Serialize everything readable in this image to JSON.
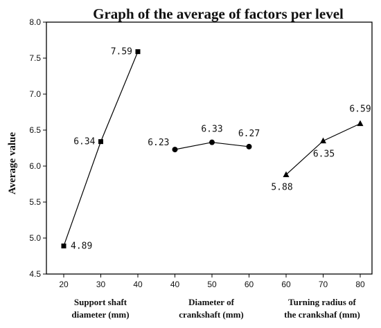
{
  "chart_data": {
    "type": "line",
    "title": "Graph of the average of factors per level",
    "ylabel": "Average value",
    "ylim": [
      4.5,
      8.0
    ],
    "yticks": [
      "4.5",
      "5.0",
      "5.5",
      "6.0",
      "6.5",
      "7.0",
      "7.5",
      "8.0"
    ],
    "grid": false,
    "groups": [
      {
        "label_lines": [
          "Support shaft",
          "diameter (mm)"
        ],
        "marker": "square",
        "x": [
          "20",
          "30",
          "40"
        ],
        "values": [
          4.89,
          6.34,
          7.59
        ],
        "value_labels": [
          "4.89",
          "6.34",
          "7.59"
        ]
      },
      {
        "label_lines": [
          "Diameter of",
          "crankshaft (mm)"
        ],
        "marker": "circle",
        "x": [
          "40",
          "50",
          "60"
        ],
        "values": [
          6.23,
          6.33,
          6.27
        ],
        "value_labels": [
          "6.23",
          "6.33",
          "6.27"
        ]
      },
      {
        "label_lines": [
          "Turning radius of",
          "the crankshaf (mm)"
        ],
        "marker": "triangle",
        "x": [
          "60",
          "70",
          "80"
        ],
        "values": [
          5.88,
          6.35,
          6.59
        ],
        "value_labels": [
          "5.88",
          "6.35",
          "6.59"
        ]
      }
    ]
  }
}
